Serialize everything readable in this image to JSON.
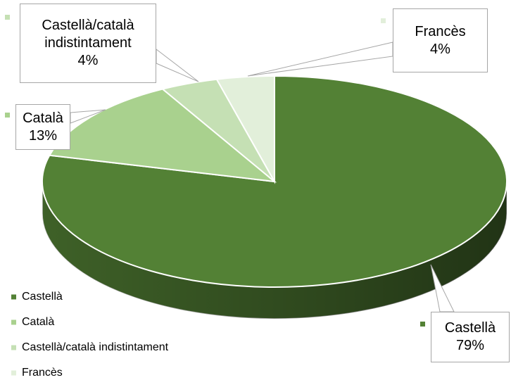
{
  "chart_data": {
    "type": "pie",
    "categories": [
      "Castellà",
      "Català",
      "Castellà/català indistintament",
      "Francès"
    ],
    "values": [
      79,
      13,
      4,
      4
    ],
    "value_labels": [
      "79%",
      "13%",
      "4%",
      "4%"
    ],
    "colors": [
      "#538135",
      "#a9d18e",
      "#c5e0b4",
      "#e2efda"
    ],
    "legend": "bottom-left",
    "three_d": true
  }
}
